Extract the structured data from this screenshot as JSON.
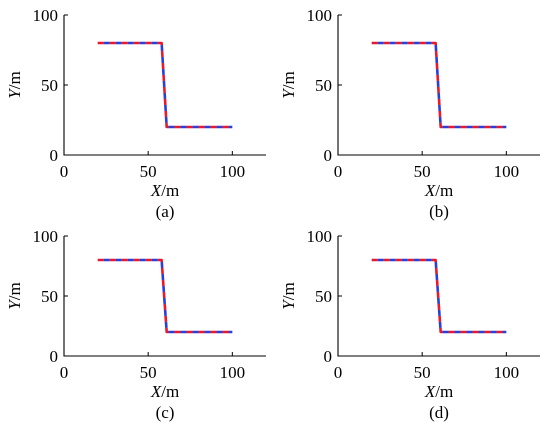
{
  "colors": {
    "axis": "#000000",
    "dash_a": "#e8192c",
    "dash_b": "#2a3fd6",
    "background": "#ffffff"
  },
  "chart_data": [
    {
      "type": "line",
      "panel_label": "(a)",
      "xlabel": "X/m",
      "ylabel": "Y/m",
      "xlim": [
        0,
        120
      ],
      "ylim": [
        0,
        100
      ],
      "xticks": [
        0,
        50,
        100
      ],
      "yticks": [
        0,
        50,
        100
      ],
      "grid": false,
      "series": [
        {
          "x": [
            20,
            58,
            61,
            100
          ],
          "y": [
            80,
            80,
            20,
            20
          ],
          "color": "#e8192c"
        },
        {
          "x": [
            20,
            58,
            61,
            100
          ],
          "y": [
            80,
            80,
            20,
            20
          ],
          "color": "#2a3fd6"
        }
      ]
    },
    {
      "type": "line",
      "panel_label": "(b)",
      "xlabel": "X/m",
      "ylabel": "Y/m",
      "xlim": [
        0,
        120
      ],
      "ylim": [
        0,
        100
      ],
      "xticks": [
        0,
        50,
        100
      ],
      "yticks": [
        0,
        50,
        100
      ],
      "grid": false,
      "series": [
        {
          "x": [
            20,
            58,
            61,
            100
          ],
          "y": [
            80,
            80,
            20,
            20
          ],
          "color": "#e8192c"
        },
        {
          "x": [
            20,
            58,
            61,
            100
          ],
          "y": [
            80,
            80,
            20,
            20
          ],
          "color": "#2a3fd6"
        }
      ]
    },
    {
      "type": "line",
      "panel_label": "(c)",
      "xlabel": "X/m",
      "ylabel": "Y/m",
      "xlim": [
        0,
        120
      ],
      "ylim": [
        0,
        100
      ],
      "xticks": [
        0,
        50,
        100
      ],
      "yticks": [
        0,
        50,
        100
      ],
      "grid": false,
      "series": [
        {
          "x": [
            20,
            58,
            61,
            100
          ],
          "y": [
            80,
            80,
            20,
            20
          ],
          "color": "#e8192c"
        },
        {
          "x": [
            20,
            58,
            61,
            100
          ],
          "y": [
            80,
            80,
            20,
            20
          ],
          "color": "#2a3fd6"
        }
      ]
    },
    {
      "type": "line",
      "panel_label": "(d)",
      "xlabel": "X/m",
      "ylabel": "Y/m",
      "xlim": [
        0,
        120
      ],
      "ylim": [
        0,
        100
      ],
      "xticks": [
        0,
        50,
        100
      ],
      "yticks": [
        0,
        50,
        100
      ],
      "grid": false,
      "series": [
        {
          "x": [
            20,
            58,
            61,
            100
          ],
          "y": [
            80,
            80,
            20,
            20
          ],
          "color": "#e8192c"
        },
        {
          "x": [
            20,
            58,
            61,
            100
          ],
          "y": [
            80,
            80,
            20,
            20
          ],
          "color": "#2a3fd6"
        }
      ]
    }
  ]
}
